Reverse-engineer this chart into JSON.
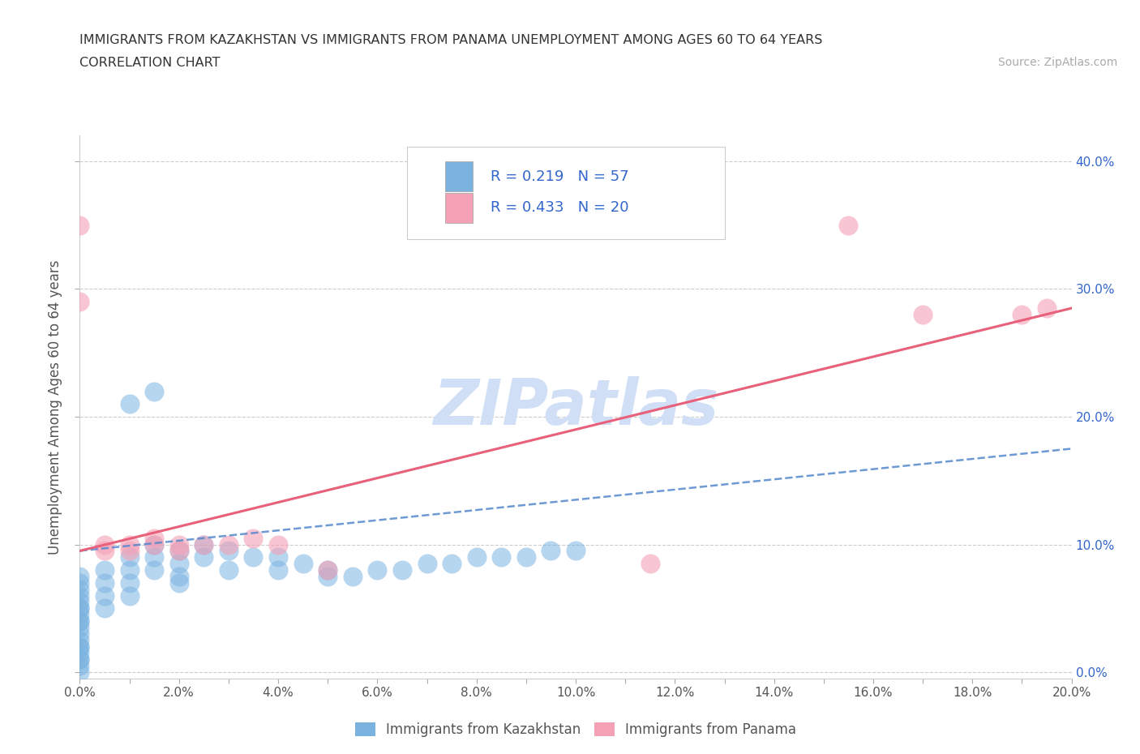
{
  "title_line1": "IMMIGRANTS FROM KAZAKHSTAN VS IMMIGRANTS FROM PANAMA UNEMPLOYMENT AMONG AGES 60 TO 64 YEARS",
  "title_line2": "CORRELATION CHART",
  "source_text": "Source: ZipAtlas.com",
  "ylabel": "Unemployment Among Ages 60 to 64 years",
  "xlim": [
    0.0,
    0.2
  ],
  "ylim": [
    -0.005,
    0.42
  ],
  "ytick_positions": [
    0.0,
    0.1,
    0.2,
    0.3,
    0.4
  ],
  "yticklabels_right": [
    "0.0%",
    "10.0%",
    "20.0%",
    "30.0%",
    "40.0%"
  ],
  "legend_r_kaz": "0.219",
  "legend_n_kaz": "57",
  "legend_r_pan": "0.433",
  "legend_n_pan": "20",
  "color_kaz": "#7ab3e0",
  "color_pan": "#f4a0b5",
  "color_text_blue": "#3366cc",
  "color_trend_kaz": "#5588cc",
  "color_trend_pan": "#e8607a",
  "watermark_color": "#d0dff5",
  "kaz_trend": [
    0.0,
    0.095,
    0.2,
    0.175
  ],
  "pan_trend": [
    0.0,
    0.095,
    0.2,
    0.285
  ],
  "kaz_points": [
    [
      0.0,
      0.0
    ],
    [
      0.0,
      0.005
    ],
    [
      0.0,
      0.01
    ],
    [
      0.0,
      0.01
    ],
    [
      0.0,
      0.015
    ],
    [
      0.0,
      0.02
    ],
    [
      0.0,
      0.02
    ],
    [
      0.0,
      0.025
    ],
    [
      0.0,
      0.03
    ],
    [
      0.0,
      0.035
    ],
    [
      0.0,
      0.04
    ],
    [
      0.0,
      0.04
    ],
    [
      0.0,
      0.045
    ],
    [
      0.0,
      0.05
    ],
    [
      0.0,
      0.05
    ],
    [
      0.0,
      0.055
    ],
    [
      0.0,
      0.06
    ],
    [
      0.0,
      0.065
    ],
    [
      0.0,
      0.07
    ],
    [
      0.0,
      0.075
    ],
    [
      0.005,
      0.05
    ],
    [
      0.005,
      0.06
    ],
    [
      0.005,
      0.07
    ],
    [
      0.005,
      0.08
    ],
    [
      0.01,
      0.06
    ],
    [
      0.01,
      0.07
    ],
    [
      0.01,
      0.08
    ],
    [
      0.01,
      0.09
    ],
    [
      0.01,
      0.21
    ],
    [
      0.015,
      0.22
    ],
    [
      0.015,
      0.08
    ],
    [
      0.015,
      0.09
    ],
    [
      0.015,
      0.1
    ],
    [
      0.02,
      0.085
    ],
    [
      0.02,
      0.095
    ],
    [
      0.02,
      0.07
    ],
    [
      0.02,
      0.075
    ],
    [
      0.025,
      0.09
    ],
    [
      0.025,
      0.1
    ],
    [
      0.03,
      0.095
    ],
    [
      0.03,
      0.08
    ],
    [
      0.035,
      0.09
    ],
    [
      0.04,
      0.09
    ],
    [
      0.04,
      0.08
    ],
    [
      0.045,
      0.085
    ],
    [
      0.05,
      0.075
    ],
    [
      0.05,
      0.08
    ],
    [
      0.055,
      0.075
    ],
    [
      0.06,
      0.08
    ],
    [
      0.065,
      0.08
    ],
    [
      0.07,
      0.085
    ],
    [
      0.075,
      0.085
    ],
    [
      0.08,
      0.09
    ],
    [
      0.085,
      0.09
    ],
    [
      0.09,
      0.09
    ],
    [
      0.095,
      0.095
    ],
    [
      0.1,
      0.095
    ]
  ],
  "pan_points": [
    [
      0.0,
      0.35
    ],
    [
      0.0,
      0.29
    ],
    [
      0.005,
      0.095
    ],
    [
      0.005,
      0.1
    ],
    [
      0.01,
      0.095
    ],
    [
      0.01,
      0.1
    ],
    [
      0.015,
      0.1
    ],
    [
      0.015,
      0.105
    ],
    [
      0.02,
      0.095
    ],
    [
      0.02,
      0.1
    ],
    [
      0.025,
      0.1
    ],
    [
      0.03,
      0.1
    ],
    [
      0.035,
      0.105
    ],
    [
      0.04,
      0.1
    ],
    [
      0.05,
      0.08
    ],
    [
      0.115,
      0.085
    ],
    [
      0.155,
      0.35
    ],
    [
      0.17,
      0.28
    ],
    [
      0.19,
      0.28
    ],
    [
      0.195,
      0.285
    ]
  ]
}
